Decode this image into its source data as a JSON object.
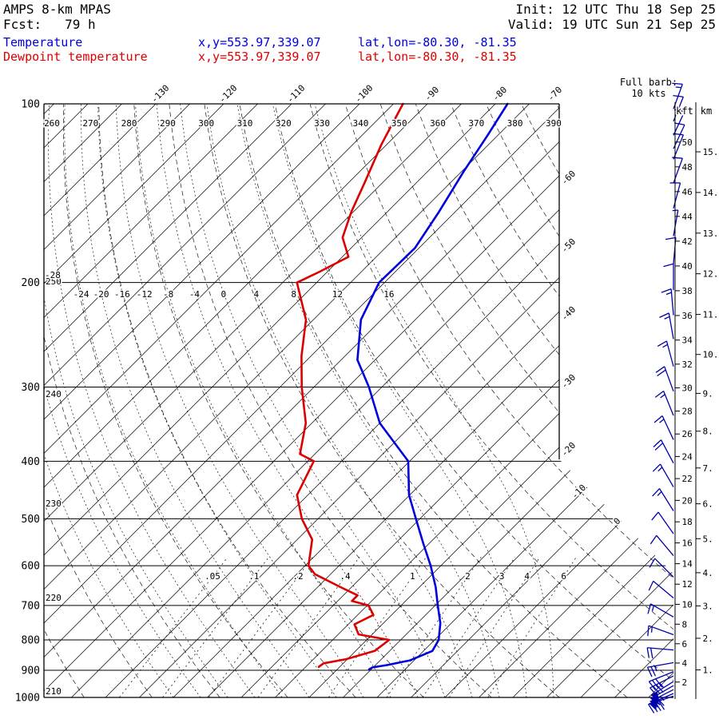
{
  "header": {
    "model": "AMPS 8-km MPAS",
    "fcst_line": "Fcst:   79 h",
    "init_line": "Init: 12 UTC Thu 18 Sep 25",
    "valid_line": "Valid: 19 UTC Sun 21 Sep 25",
    "temp_label": "Temperature",
    "temp_xy": "x,y=553.97,339.07",
    "temp_latlon": "lat,lon=-80.30, -81.35",
    "dewp_label": "Dewpoint temperature",
    "dewp_xy": "x,y=553.97,339.07",
    "dewp_latlon": "lat,lon=-80.30, -81.35",
    "barb_note_line1": "Full barb:",
    "barb_note_line2": "10 kts"
  },
  "colors": {
    "temperature": "#0000dd",
    "dewpoint": "#dd0000",
    "wind_barb": "#0000aa",
    "grid": "#000000"
  },
  "chart_data": {
    "type": "skewt_logp",
    "pressure_levels_hPa": [
      100,
      200,
      300,
      400,
      500,
      600,
      700,
      800,
      900,
      1000
    ],
    "isotherms_c": {
      "min": -145,
      "max": 30,
      "step": 5
    },
    "isotherm_labels_top_c": [
      -130,
      -120,
      -110,
      -100,
      -90,
      -80,
      -70
    ],
    "isotherm_labels_right_c": [
      -60,
      -50,
      -40,
      -30,
      -20
    ],
    "isotherm_labels_inner_c": [
      -10,
      0
    ],
    "dry_adiabats_K": {
      "min": 210,
      "max": 390,
      "step": 10
    },
    "dry_adiabat_labels_top_K": [
      260,
      270,
      280,
      290,
      300,
      310,
      320,
      330,
      340,
      350,
      360,
      370,
      380,
      390
    ],
    "dry_adiabat_labels_left_K": [
      250,
      240,
      230,
      220,
      210
    ],
    "moist_adiabats_c": {
      "min": -40,
      "max": 16,
      "step": 4
    },
    "moist_adiabat_row_labels_c": [
      -24,
      -20,
      -16,
      -12,
      -8,
      -4,
      0,
      4,
      8,
      12,
      16
    ],
    "moist_adiabat_left_label_c": -28,
    "mixing_ratio_values_gkg": [
      0.05,
      0.1,
      0.2,
      0.4,
      1,
      2,
      3,
      4,
      6
    ],
    "mixing_ratio_labels": [
      ".05",
      ".1",
      ".2",
      ".4",
      "1",
      "2",
      "3",
      "4",
      "6"
    ],
    "height_scale": {
      "kft_header": "kft",
      "km_header": "km",
      "kft_values": [
        2,
        4,
        6,
        8,
        10,
        12,
        14,
        16,
        18,
        20,
        22,
        24,
        26,
        28,
        30,
        32,
        34,
        36,
        38,
        40,
        42,
        44,
        46,
        48,
        50
      ],
      "km_values": [
        1,
        2,
        3,
        4,
        5,
        6,
        7,
        8,
        9,
        10,
        11,
        12,
        13,
        14,
        15
      ]
    },
    "wind_barb_full_kts": 10,
    "temperature_profile": [
      [
        100,
        -78.2
      ],
      [
        113,
        -76.5
      ],
      [
        130,
        -74.7
      ],
      [
        152,
        -72.4
      ],
      [
        175,
        -70.6
      ],
      [
        200,
        -70.8
      ],
      [
        231,
        -68
      ],
      [
        270,
        -62.6
      ],
      [
        300,
        -56.9
      ],
      [
        345,
        -50
      ],
      [
        400,
        -40.2
      ],
      [
        456,
        -35.1
      ],
      [
        500,
        -30.6
      ],
      [
        550,
        -25.9
      ],
      [
        600,
        -21.5
      ],
      [
        652,
        -17.6
      ],
      [
        700,
        -14.6
      ],
      [
        750,
        -11.6
      ],
      [
        800,
        -9.4
      ],
      [
        835,
        -8.7
      ],
      [
        866,
        -10.6
      ],
      [
        882,
        -13.3
      ],
      [
        890,
        -15.1
      ],
      [
        897,
        -15.3
      ]
    ],
    "dewpoint_profile": [
      [
        100,
        -93.6
      ],
      [
        117,
        -90.8
      ],
      [
        136,
        -87.6
      ],
      [
        152,
        -85.3
      ],
      [
        168,
        -82.8
      ],
      [
        181,
        -79.1
      ],
      [
        192,
        -81.2
      ],
      [
        200,
        -82.9
      ],
      [
        231,
        -76.1
      ],
      [
        266,
        -71.4
      ],
      [
        300,
        -66.8
      ],
      [
        345,
        -60.9
      ],
      [
        389,
        -57.2
      ],
      [
        400,
        -54.1
      ],
      [
        456,
        -51.6
      ],
      [
        500,
        -47.4
      ],
      [
        542,
        -42.8
      ],
      [
        600,
        -39.5
      ],
      [
        620,
        -37.3
      ],
      [
        652,
        -31.6
      ],
      [
        673,
        -27.9
      ],
      [
        688,
        -27.9
      ],
      [
        700,
        -24.8
      ],
      [
        726,
        -22.7
      ],
      [
        753,
        -24.1
      ],
      [
        783,
        -22
      ],
      [
        800,
        -16.7
      ],
      [
        835,
        -17.2
      ],
      [
        862,
        -20.2
      ],
      [
        876,
        -22.9
      ],
      [
        888,
        -23.1
      ]
    ],
    "wind_barbs": [
      [
        102,
        15,
        20
      ],
      [
        107,
        10,
        22
      ],
      [
        113,
        15,
        25
      ],
      [
        119,
        10,
        25
      ],
      [
        124,
        10,
        22
      ],
      [
        136,
        10,
        20
      ],
      [
        150,
        10,
        15
      ],
      [
        167,
        5,
        10
      ],
      [
        186,
        10,
        5
      ],
      [
        206,
        10,
        0
      ],
      [
        227,
        15,
        355
      ],
      [
        249,
        15,
        350
      ],
      [
        277,
        15,
        345
      ],
      [
        305,
        20,
        340
      ],
      [
        335,
        15,
        338
      ],
      [
        368,
        15,
        335
      ],
      [
        403,
        20,
        332
      ],
      [
        442,
        15,
        330
      ],
      [
        485,
        15,
        328
      ],
      [
        530,
        10,
        325
      ],
      [
        577,
        10,
        320
      ],
      [
        627,
        10,
        315
      ],
      [
        680,
        10,
        310
      ],
      [
        732,
        15,
        300
      ],
      [
        784,
        15,
        290
      ],
      [
        832,
        20,
        275
      ],
      [
        874,
        25,
        260
      ],
      [
        905,
        30,
        248
      ],
      [
        920,
        35,
        243
      ],
      [
        940,
        50,
        238
      ],
      [
        955,
        50,
        240
      ],
      [
        970,
        65,
        243
      ],
      [
        985,
        55,
        247
      ],
      [
        995,
        40,
        252
      ]
    ]
  }
}
